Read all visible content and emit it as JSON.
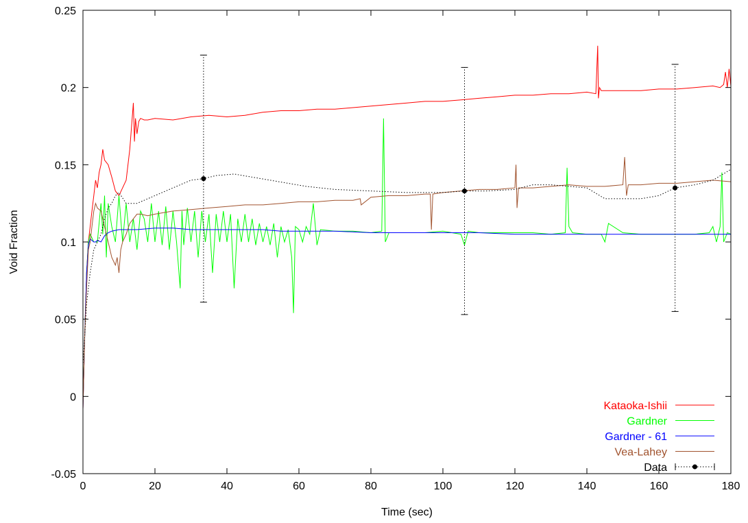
{
  "chart_data": {
    "type": "line",
    "xlabel": "Time (sec)",
    "ylabel": "Void Fraction",
    "xlim": [
      0,
      180
    ],
    "ylim": [
      -0.05,
      0.25
    ],
    "x_ticks": [
      0,
      20,
      40,
      60,
      80,
      100,
      120,
      140,
      160,
      180
    ],
    "y_ticks": [
      -0.05,
      0,
      0.05,
      0.1,
      0.15,
      0.2,
      0.25
    ],
    "x_tick_labels": [
      "0",
      "20",
      "40",
      "60",
      "80",
      "100",
      "120",
      "140",
      "160",
      "180"
    ],
    "y_tick_labels": [
      "-0.05",
      "0",
      "0.05",
      "0.1",
      "0.15",
      "0.2",
      "0.25"
    ],
    "grid": false,
    "legend_position": "bottom-right",
    "series": [
      {
        "name": "Kataoka-Ishii",
        "color": "#ff0000",
        "style": "solid",
        "x": [
          0,
          0.5,
          1,
          1.5,
          2,
          2.5,
          3,
          3.5,
          4,
          4.5,
          5,
          5.5,
          6,
          7,
          8,
          9,
          10,
          11,
          12,
          13,
          13.5,
          14,
          14.3,
          14.6,
          15,
          15.5,
          16,
          17,
          18,
          20,
          25,
          30,
          35,
          40,
          45,
          50,
          55,
          60,
          65,
          70,
          75,
          80,
          85,
          90,
          95,
          100,
          105,
          110,
          115,
          120,
          125,
          130,
          135,
          140,
          142.5,
          143,
          143.2,
          143.5,
          144,
          146,
          150,
          155,
          160,
          165,
          170,
          175,
          177,
          178,
          178.5,
          179,
          179.5,
          180
        ],
        "y": [
          -0.008,
          0.04,
          0.08,
          0.1,
          0.11,
          0.12,
          0.13,
          0.14,
          0.135,
          0.145,
          0.15,
          0.16,
          0.153,
          0.15,
          0.142,
          0.133,
          0.13,
          0.135,
          0.14,
          0.16,
          0.175,
          0.19,
          0.165,
          0.18,
          0.17,
          0.178,
          0.18,
          0.179,
          0.179,
          0.18,
          0.179,
          0.181,
          0.182,
          0.181,
          0.182,
          0.184,
          0.185,
          0.185,
          0.186,
          0.186,
          0.187,
          0.188,
          0.189,
          0.19,
          0.191,
          0.191,
          0.192,
          0.193,
          0.194,
          0.195,
          0.195,
          0.196,
          0.196,
          0.197,
          0.196,
          0.227,
          0.193,
          0.2,
          0.198,
          0.198,
          0.198,
          0.198,
          0.199,
          0.199,
          0.2,
          0.201,
          0.2,
          0.202,
          0.21,
          0.2,
          0.212,
          0.201
        ]
      },
      {
        "name": "Gardner",
        "color": "#00ff00",
        "style": "solid",
        "x": [
          0,
          0.5,
          1,
          1.5,
          2,
          3,
          4,
          5,
          5.5,
          6,
          6.5,
          7,
          8,
          9,
          10,
          11,
          12,
          13,
          14,
          15,
          16,
          17,
          18,
          19,
          20,
          21,
          22,
          23,
          24,
          25,
          26,
          27,
          27.5,
          28,
          29,
          30,
          31,
          32,
          33,
          34,
          35,
          36,
          37,
          38,
          39,
          40,
          41,
          42,
          43,
          44,
          45,
          46,
          47,
          48,
          49,
          50,
          51,
          52,
          53,
          54,
          55,
          56,
          57,
          58,
          58.5,
          59,
          60,
          61,
          62,
          63,
          64,
          65,
          66,
          70,
          75,
          80,
          83,
          83.5,
          84,
          85,
          90,
          95,
          100,
          105,
          106,
          107,
          110,
          115,
          120,
          125,
          130,
          134,
          134.5,
          135,
          136,
          140,
          144,
          145,
          146,
          150,
          155,
          160,
          165,
          170,
          174,
          175,
          176,
          177,
          177.5,
          178,
          179,
          180
        ],
        "y": [
          -0.005,
          0.04,
          0.08,
          0.1,
          0.105,
          0.1,
          0.1,
          0.125,
          0.105,
          0.13,
          0.09,
          0.125,
          0.11,
          0.1,
          0.13,
          0.1,
          0.125,
          0.1,
          0.115,
          0.095,
          0.12,
          0.115,
          0.1,
          0.125,
          0.1,
          0.12,
          0.098,
          0.123,
          0.095,
          0.12,
          0.1,
          0.07,
          0.12,
          0.098,
          0.122,
          0.1,
          0.12,
          0.09,
          0.12,
          0.1,
          0.118,
          0.08,
          0.118,
          0.1,
          0.12,
          0.1,
          0.118,
          0.07,
          0.115,
          0.1,
          0.118,
          0.1,
          0.115,
          0.098,
          0.112,
          0.1,
          0.11,
          0.098,
          0.112,
          0.09,
          0.11,
          0.1,
          0.108,
          0.09,
          0.054,
          0.11,
          0.108,
          0.1,
          0.11,
          0.105,
          0.125,
          0.098,
          0.108,
          0.107,
          0.107,
          0.106,
          0.107,
          0.18,
          0.1,
          0.106,
          0.106,
          0.106,
          0.107,
          0.105,
          0.098,
          0.107,
          0.106,
          0.106,
          0.106,
          0.106,
          0.105,
          0.106,
          0.148,
          0.11,
          0.106,
          0.105,
          0.105,
          0.1,
          0.112,
          0.106,
          0.105,
          0.105,
          0.105,
          0.105,
          0.106,
          0.11,
          0.1,
          0.11,
          0.145,
          0.1,
          0.106,
          0.105
        ]
      },
      {
        "name": "Gardner - 61",
        "color": "#0000ff",
        "style": "solid",
        "x": [
          0,
          0.5,
          1,
          1.5,
          2,
          2.5,
          3,
          3.5,
          4,
          5,
          6,
          7,
          8,
          10,
          12,
          15,
          20,
          25,
          30,
          35,
          40,
          45,
          50,
          55,
          60,
          70,
          80,
          90,
          100,
          110,
          120,
          130,
          140,
          150,
          160,
          170,
          180
        ],
        "y": [
          -0.008,
          0.04,
          0.08,
          0.098,
          0.102,
          0.101,
          0.1,
          0.1,
          0.101,
          0.1,
          0.104,
          0.106,
          0.107,
          0.108,
          0.108,
          0.108,
          0.109,
          0.109,
          0.108,
          0.108,
          0.108,
          0.108,
          0.108,
          0.107,
          0.107,
          0.107,
          0.106,
          0.106,
          0.106,
          0.106,
          0.105,
          0.105,
          0.105,
          0.105,
          0.105,
          0.105,
          0.105
        ]
      },
      {
        "name": "Vea-Lahey",
        "color": "#a0522d",
        "style": "solid",
        "x": [
          0,
          0.5,
          1,
          1.5,
          2,
          2.5,
          3,
          3.5,
          4,
          5,
          6,
          7,
          8,
          9,
          9.5,
          10,
          10.5,
          11,
          12,
          13,
          14,
          15,
          16,
          18,
          20,
          25,
          30,
          35,
          40,
          45,
          50,
          55,
          60,
          65,
          70,
          75,
          77,
          77.3,
          80,
          85,
          90,
          95,
          96.5,
          96.8,
          97.2,
          100,
          105,
          110,
          115,
          120,
          120.3,
          120.6,
          121,
          125,
          130,
          135,
          140,
          145,
          150,
          150.5,
          151,
          151.5,
          155,
          160,
          165,
          170,
          175,
          180
        ],
        "y": [
          -0.008,
          0.04,
          0.07,
          0.095,
          0.1,
          0.11,
          0.12,
          0.125,
          0.122,
          0.12,
          0.11,
          0.1,
          0.09,
          0.085,
          0.09,
          0.08,
          0.095,
          0.1,
          0.105,
          0.112,
          0.115,
          0.118,
          0.118,
          0.117,
          0.118,
          0.12,
          0.121,
          0.122,
          0.123,
          0.124,
          0.124,
          0.125,
          0.126,
          0.126,
          0.127,
          0.127,
          0.128,
          0.124,
          0.129,
          0.13,
          0.13,
          0.131,
          0.131,
          0.108,
          0.131,
          0.132,
          0.133,
          0.134,
          0.134,
          0.135,
          0.15,
          0.122,
          0.135,
          0.135,
          0.136,
          0.137,
          0.136,
          0.136,
          0.137,
          0.155,
          0.13,
          0.137,
          0.137,
          0.138,
          0.138,
          0.139,
          0.14,
          0.139
        ]
      },
      {
        "name": "Data",
        "color": "#000000",
        "style": "dotted",
        "x": [
          0,
          1,
          2,
          3,
          4,
          5,
          6,
          7,
          8,
          9,
          10,
          12,
          15,
          20,
          25,
          30,
          33.5,
          37,
          42,
          47,
          52,
          57,
          62,
          70,
          80,
          90,
          100,
          106,
          112,
          120,
          125,
          130,
          140,
          145,
          150,
          155,
          160,
          164.5,
          170,
          175,
          180
        ],
        "y": [
          0.02,
          0.06,
          0.08,
          0.095,
          0.1,
          0.105,
          0.115,
          0.122,
          0.125,
          0.13,
          0.132,
          0.125,
          0.125,
          0.13,
          0.135,
          0.14,
          0.141,
          0.143,
          0.144,
          0.142,
          0.14,
          0.138,
          0.136,
          0.134,
          0.133,
          0.132,
          0.132,
          0.133,
          0.133,
          0.134,
          0.137,
          0.137,
          0.135,
          0.128,
          0.128,
          0.128,
          0.13,
          0.135,
          0.137,
          0.14,
          0.147
        ]
      }
    ],
    "data_markers": [
      {
        "x": 33.5,
        "y": 0.141,
        "y_low": 0.061,
        "y_high": 0.221
      },
      {
        "x": 106,
        "y": 0.133,
        "y_low": 0.053,
        "y_high": 0.213
      },
      {
        "x": 164.5,
        "y": 0.135,
        "y_low": 0.055,
        "y_high": 0.215
      }
    ]
  }
}
